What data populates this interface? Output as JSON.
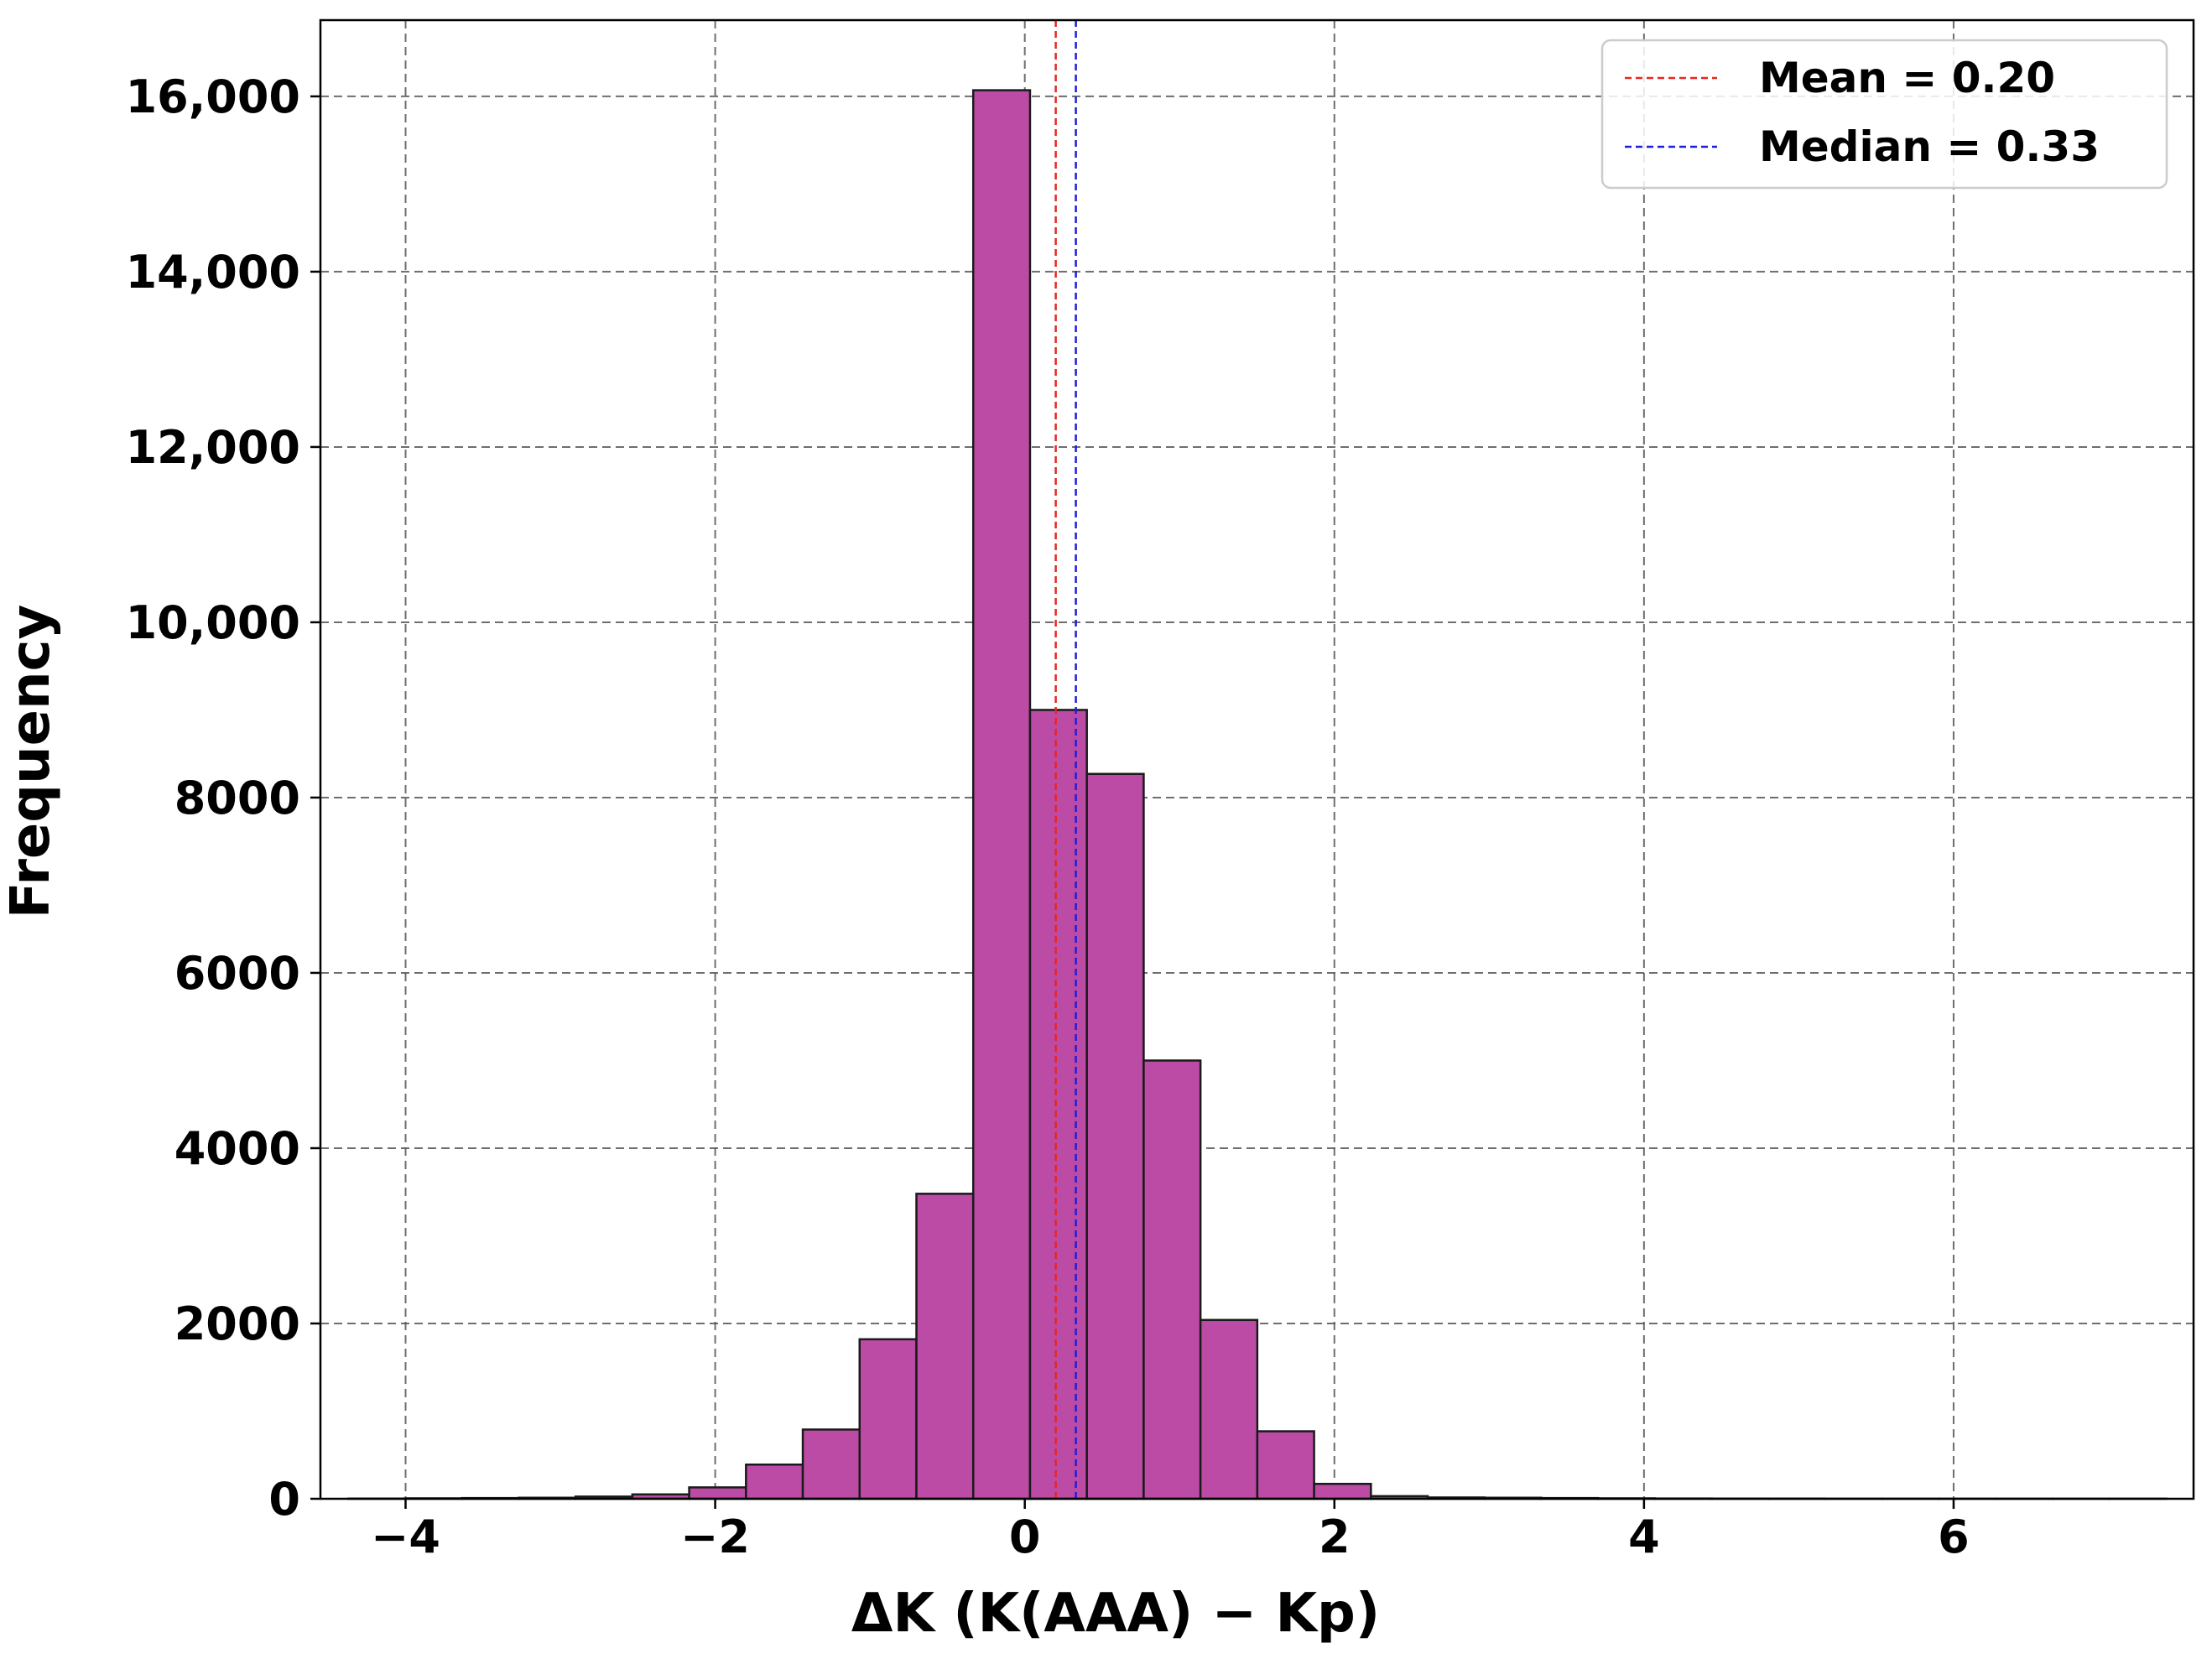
{
  "chart_data": {
    "type": "bar",
    "subtype": "histogram",
    "title": "",
    "xlabel": "ΔK (K(AAA) − Kp)",
    "ylabel": "Frequency",
    "xlim": [
      -4.55,
      7.55
    ],
    "ylim": [
      0,
      16870
    ],
    "x_ticks": [
      -4,
      -2,
      0,
      2,
      4,
      6
    ],
    "x_tick_labels": [
      "−4",
      "−2",
      "0",
      "2",
      "4",
      "6"
    ],
    "y_ticks": [
      0,
      2000,
      4000,
      6000,
      8000,
      10000,
      12000,
      14000,
      16000
    ],
    "y_tick_labels": [
      "0",
      "2000",
      "4000",
      "6000",
      "8000",
      "10,000",
      "12,000",
      "14,000",
      "16,000"
    ],
    "grid": true,
    "bin_edges": [
      -4.37,
      -4.003,
      -3.636,
      -3.269,
      -2.902,
      -2.535,
      -2.168,
      -1.801,
      -1.434,
      -1.067,
      -0.7,
      -0.333,
      0.034,
      0.401,
      0.768,
      1.135,
      1.502,
      1.869,
      2.236,
      2.603,
      2.97,
      3.337,
      3.704,
      4.071,
      4.438,
      4.805,
      5.172,
      5.539,
      5.906,
      6.273,
      6.64,
      7.007,
      7.374
    ],
    "counts": [
      2,
      5,
      8,
      12,
      25,
      50,
      130,
      390,
      790,
      1820,
      3480,
      16070,
      9000,
      8270,
      5000,
      2040,
      770,
      170,
      30,
      15,
      12,
      8,
      5,
      3,
      2,
      2,
      1,
      1,
      1,
      1,
      1,
      1
    ],
    "bar_color": "#bc4ba6",
    "bar_edge_color": "#1a1a1a",
    "reference_lines": [
      {
        "label": "Mean = 0.20",
        "x": 0.2,
        "color": "#e8261e"
      },
      {
        "label": "Median = 0.33",
        "x": 0.33,
        "color": "#1f1fd6"
      }
    ],
    "legend_position": "top-right"
  }
}
